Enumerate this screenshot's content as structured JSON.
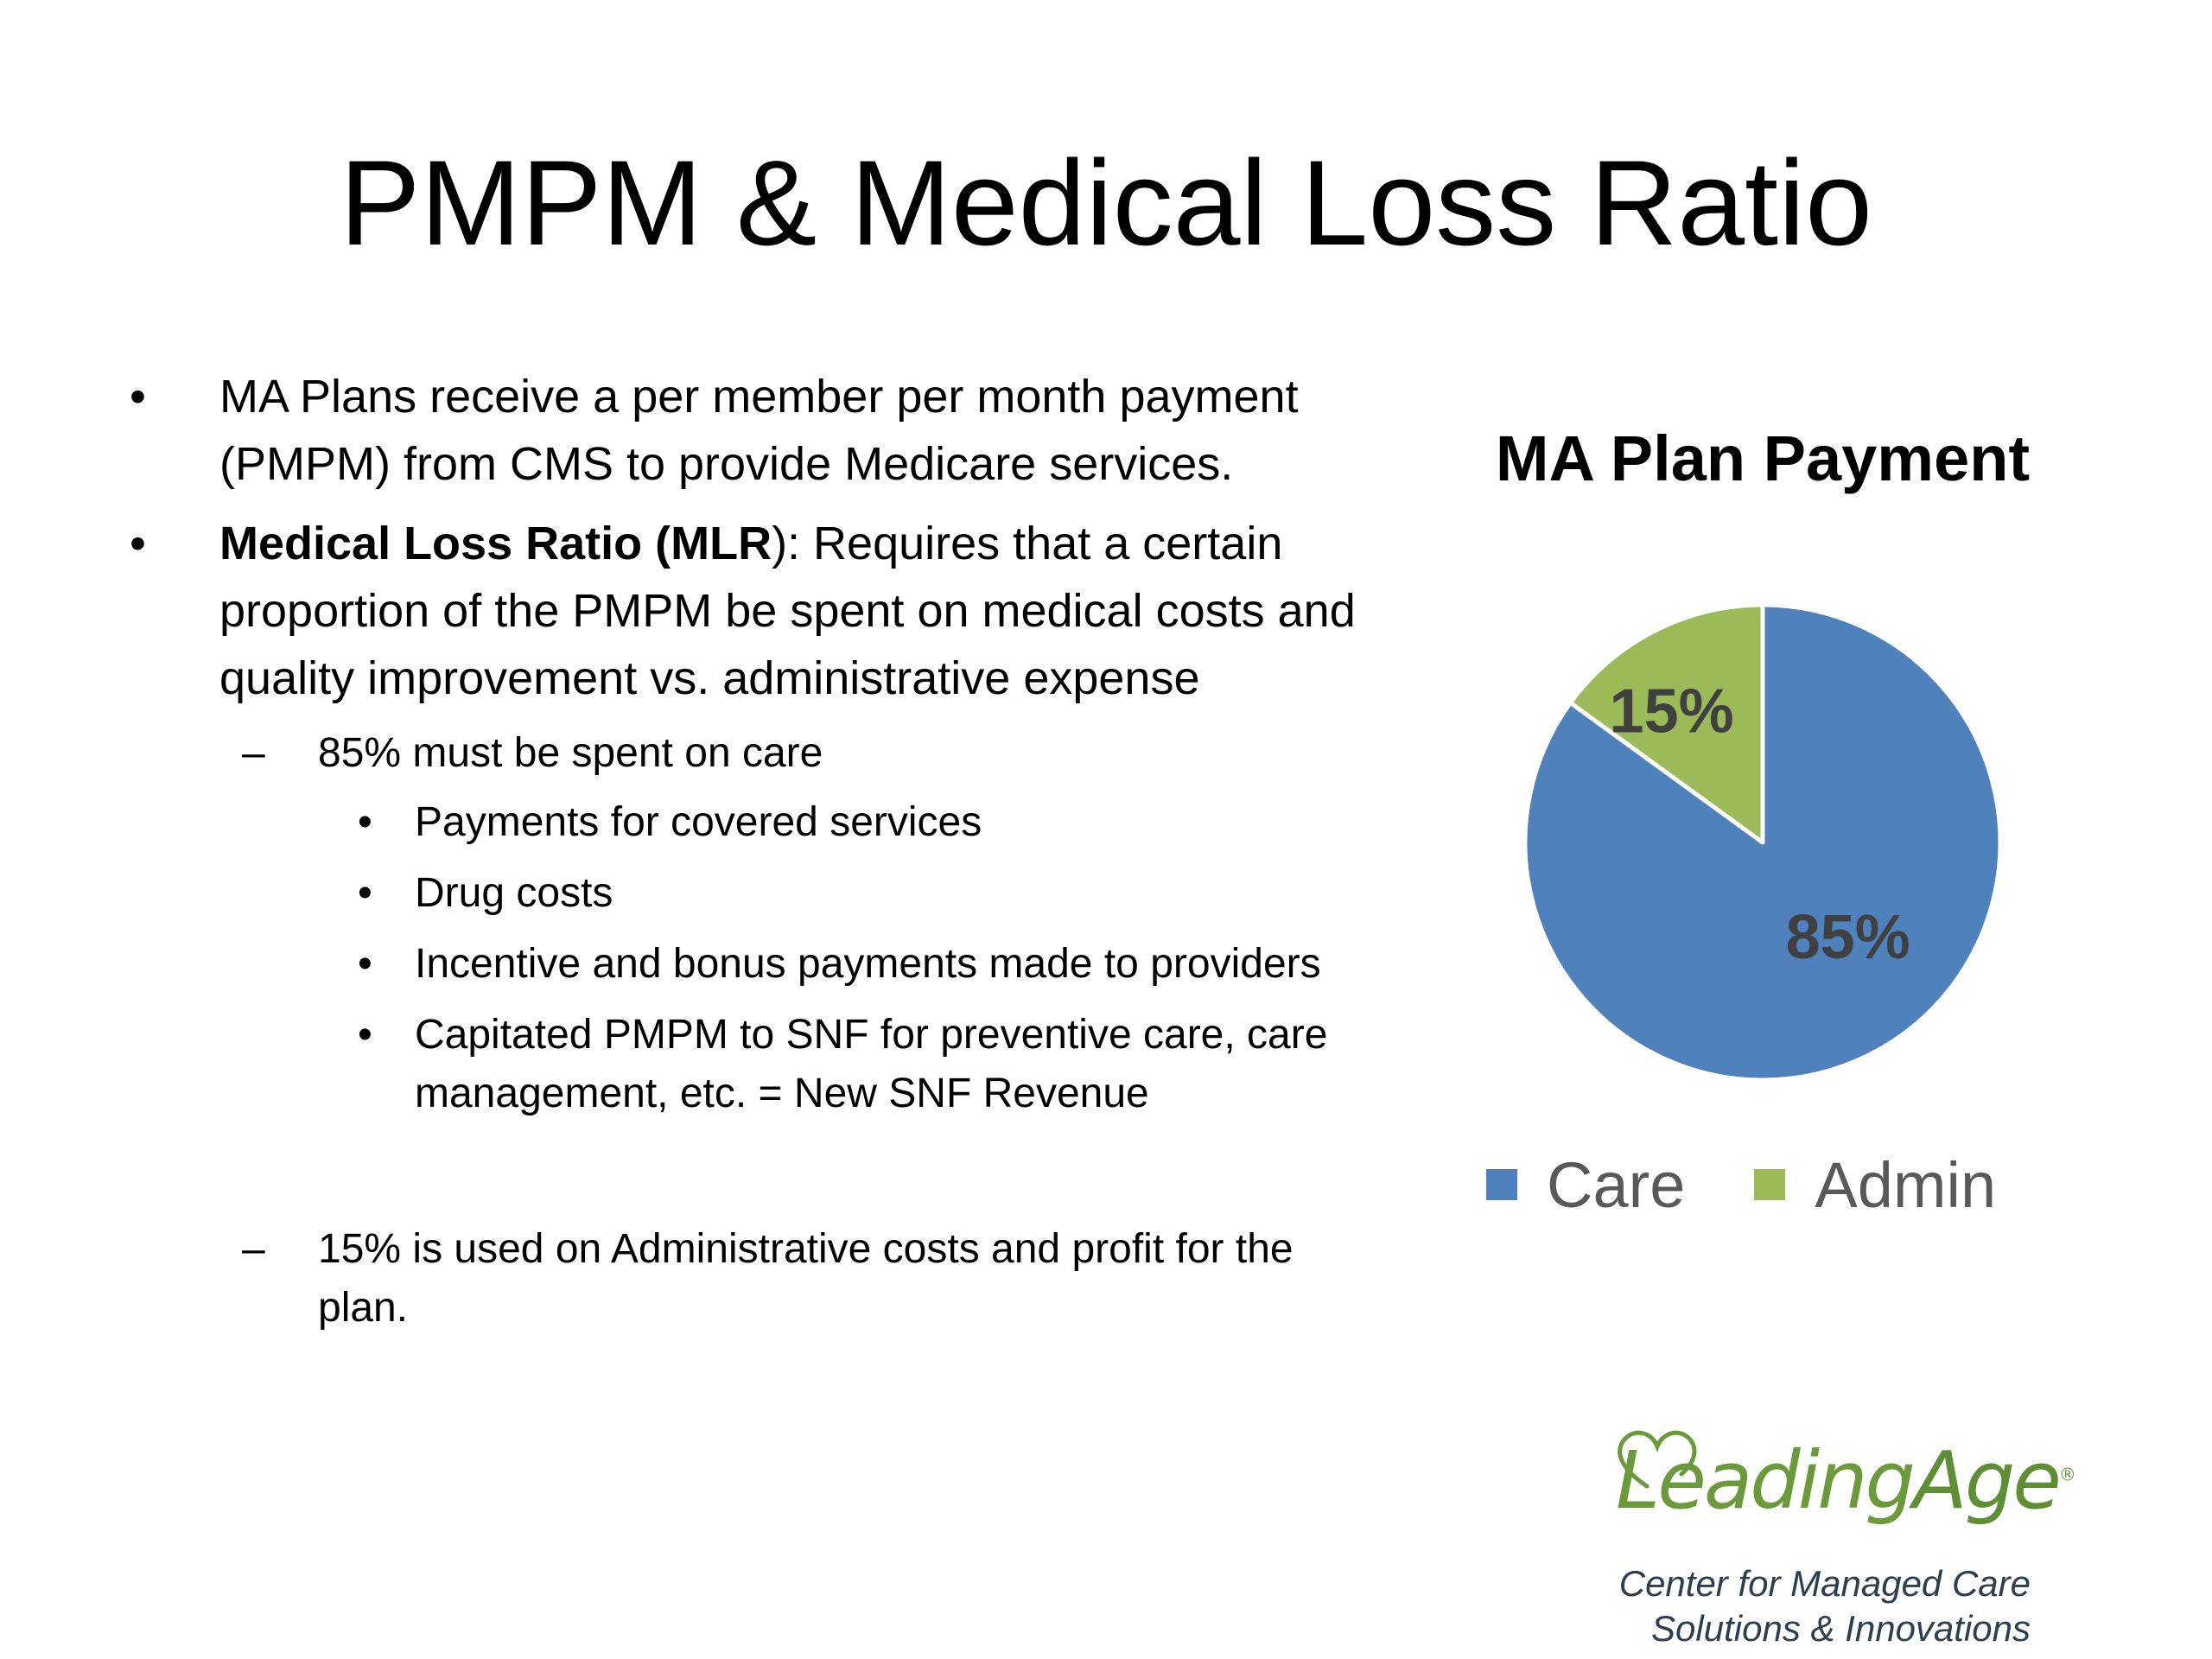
{
  "slide": {
    "title": "PMPM & Medical Loss Ratio"
  },
  "bullets": {
    "b1_text": "MA Plans receive a per member per month payment (PMPM) from CMS to provide Medicare services.",
    "b2_bold": "Medical Loss Ratio (MLR",
    "b2_rest": "): Requires that a certain proportion of the PMPM be spent on medical costs and quality improvement vs. administrative expense",
    "sub1": "85% must be spent on care",
    "sub1_items": [
      "Payments for covered services",
      "Drug costs",
      "Incentive and bonus payments made to providers",
      "Capitated PMPM to SNF for preventive care, care management, etc. = New SNF Revenue"
    ],
    "sub2": "15% is used on Administrative costs and profit for the plan.",
    "bullet_glyph": "•",
    "dash_glyph": "–"
  },
  "chart_data": {
    "type": "pie",
    "title": "MA Plan Payment",
    "categories": [
      "Care",
      "Admin"
    ],
    "values": [
      85,
      15
    ],
    "data_labels": [
      "85%",
      "15%"
    ],
    "colors": [
      "#4f81bd",
      "#9bbb59"
    ],
    "legend_position": "bottom",
    "start_angle": "12 o'clock, clockwise"
  },
  "logo": {
    "word_part1": "Leading",
    "word_part2": "Age",
    "registered": "®",
    "subtitle_line1": "Center for Managed Care",
    "subtitle_line2": "Solutions & Innovations",
    "colors": {
      "green": "#6a9a3a",
      "navy": "#2c3e50"
    }
  }
}
